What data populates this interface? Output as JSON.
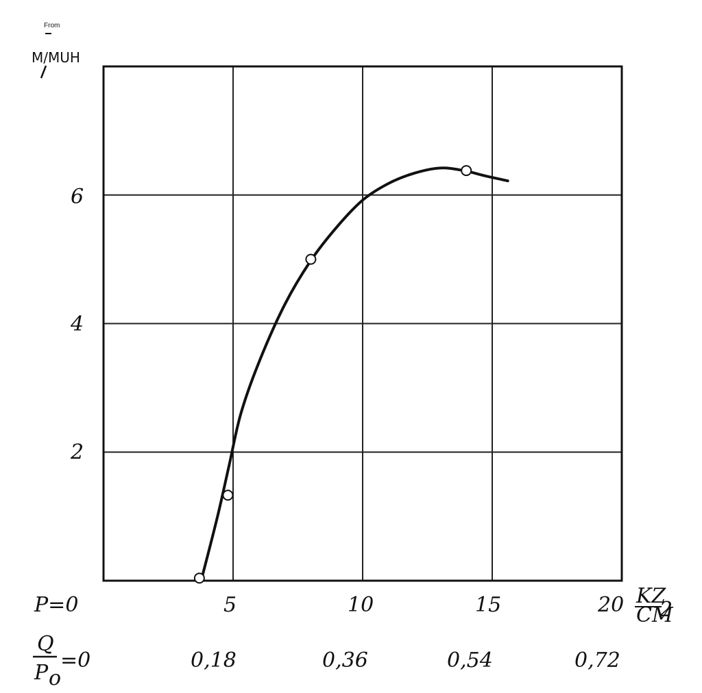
{
  "chart_data": {
    "type": "line",
    "ylabel_top": "From",
    "ylabel": "M/MUH",
    "yticks": [
      "2",
      "4",
      "6"
    ],
    "ylim": [
      0,
      8
    ],
    "xlim": [
      0,
      20
    ],
    "x_primary": {
      "label": "P",
      "zero_label": "P=0",
      "ticks": [
        "5",
        "10",
        "15",
        "20"
      ],
      "unit_num": "KZ",
      "unit_den": "CM",
      "unit_exp": "2"
    },
    "x_secondary": {
      "num": "Q",
      "den": "P",
      "den_sub": "o",
      "zero_label": "=0",
      "ticks": [
        "0,18",
        "0,36",
        "0,54",
        "0,72"
      ]
    },
    "series": [
      {
        "curve": [
          [
            3.8,
            0.05
          ],
          [
            4.4,
            1.0
          ],
          [
            4.85,
            1.8
          ],
          [
            5.3,
            2.6
          ],
          [
            6.0,
            3.4
          ],
          [
            7.0,
            4.3
          ],
          [
            8.0,
            4.98
          ],
          [
            9.0,
            5.5
          ],
          [
            10.0,
            5.92
          ],
          [
            11.0,
            6.18
          ],
          [
            12.0,
            6.34
          ],
          [
            13.0,
            6.42
          ],
          [
            13.9,
            6.38
          ],
          [
            14.7,
            6.3
          ],
          [
            15.6,
            6.22
          ]
        ],
        "points": [
          [
            3.7,
            0.04
          ],
          [
            4.8,
            1.33
          ],
          [
            8.0,
            5.0
          ],
          [
            14.0,
            6.38
          ]
        ]
      }
    ],
    "grid": true
  }
}
